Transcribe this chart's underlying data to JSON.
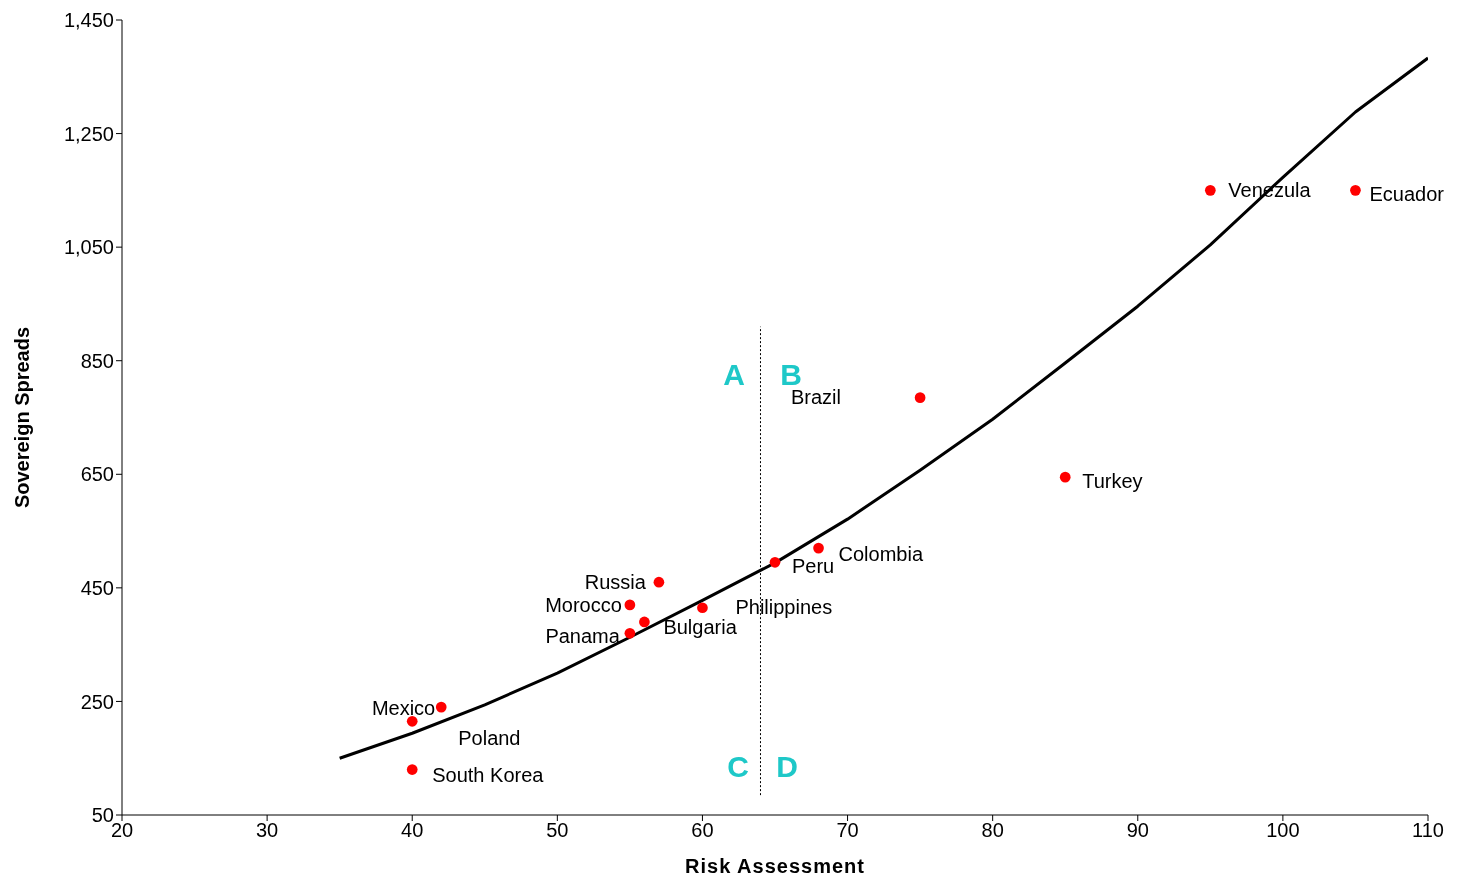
{
  "chart_data": {
    "type": "scatter",
    "xlabel": "Risk Assessment",
    "ylabel": "Sovereign Spreads",
    "xlim": [
      20,
      110
    ],
    "xticks": [
      20,
      30,
      40,
      50,
      60,
      70,
      80,
      90,
      100,
      110
    ],
    "ylim": [
      50,
      1450
    ],
    "yticks": [
      50,
      250,
      450,
      650,
      850,
      {
        "value": 1050,
        "label": "1,050"
      },
      {
        "value": 1250,
        "label": "1,250"
      },
      {
        "value": 1450,
        "label": "1,450"
      }
    ],
    "series": [
      {
        "type": "line",
        "color": "#000000",
        "line_style": "solid",
        "x": [
          35,
          40,
          45,
          50,
          55,
          60,
          65,
          70,
          75,
          80,
          85,
          90,
          95,
          100,
          105,
          110
        ],
        "values": [
          150,
          194,
          244,
          300,
          363,
          428,
          494,
          571,
          657,
          747,
          846,
          946,
          1054,
          1173,
          1288,
          1383
        ]
      },
      {
        "type": "line",
        "color": "#000000",
        "line_style": "dotted",
        "x": [
          64,
          64
        ],
        "values": [
          85,
          910
        ]
      },
      {
        "marker": "circle",
        "color": "#ff0000",
        "x": [
          95,
          105,
          75,
          85,
          68,
          65,
          57,
          55,
          56,
          60,
          55,
          42,
          40,
          40
        ],
        "values": [
          1150,
          1150,
          785,
          645,
          520,
          495,
          460,
          420,
          390,
          415,
          370,
          240,
          215,
          130
        ]
      }
    ],
    "annotations": [
      {
        "text": "Venezula",
        "x": 95,
        "y": 1150
      },
      {
        "text": "Ecuador",
        "x": 105,
        "y": 1150
      },
      "Brazil",
      {
        "text": "Turkey",
        "x": 85,
        "y": 645
      },
      {
        "text": "Colombia",
        "x": 68,
        "y": 520
      },
      {
        "text": "Peru",
        "x": 65,
        "y": 495
      },
      {
        "text": "Russia",
        "x": 57,
        "y": 460
      },
      {
        "text": "Morocco",
        "x": 55,
        "y": 420
      },
      {
        "text": "Bulgaria",
        "x": 56,
        "y": 390
      },
      {
        "text": "Philippines",
        "x": 60,
        "y": 415
      },
      {
        "text": "Panama",
        "x": 55,
        "y": 370
      },
      {
        "text": "Mexico",
        "x": 42,
        "y": 240
      },
      {
        "text": "Poland",
        "x": 40,
        "y": 215
      },
      {
        "text": "South Korea",
        "x": 40,
        "y": 130
      },
      "A",
      "B",
      "C",
      "D"
    ]
  }
}
